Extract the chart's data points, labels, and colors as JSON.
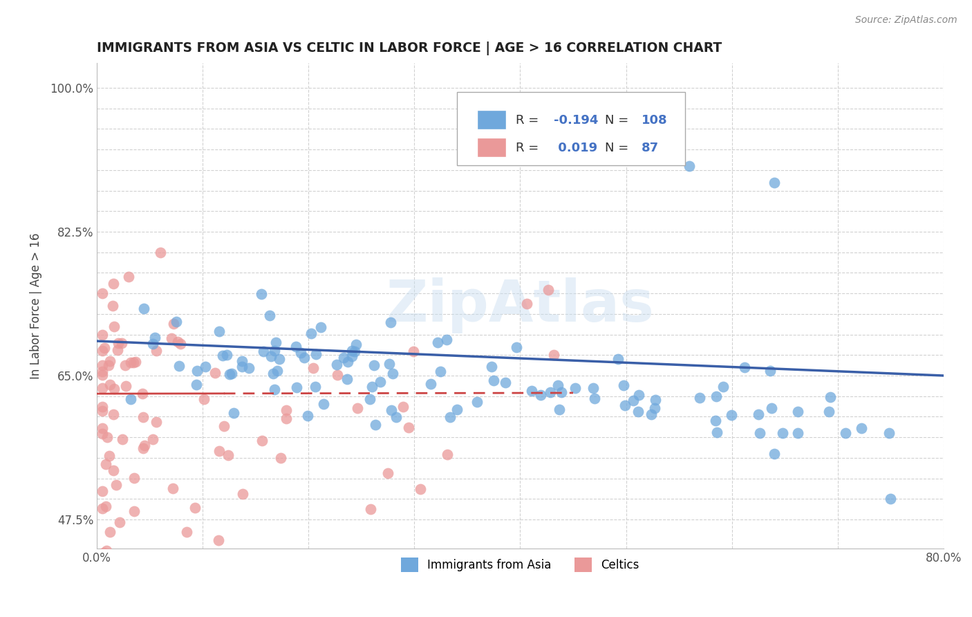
{
  "title": "IMMIGRANTS FROM ASIA VS CELTIC IN LABOR FORCE | AGE > 16 CORRELATION CHART",
  "source_text": "Source: ZipAtlas.com",
  "ylabel": "In Labor Force | Age > 16",
  "xmin": 0.0,
  "xmax": 0.8,
  "ymin": 0.44,
  "ymax": 1.03,
  "blue_R": -0.194,
  "blue_N": 108,
  "pink_R": 0.019,
  "pink_N": 87,
  "blue_color": "#6fa8dc",
  "pink_color": "#ea9999",
  "blue_line_color": "#3a5fa8",
  "pink_line_color": "#cc4444",
  "legend_label_blue": "Immigrants from Asia",
  "legend_label_pink": "Celtics",
  "watermark": "ZipAtlas"
}
